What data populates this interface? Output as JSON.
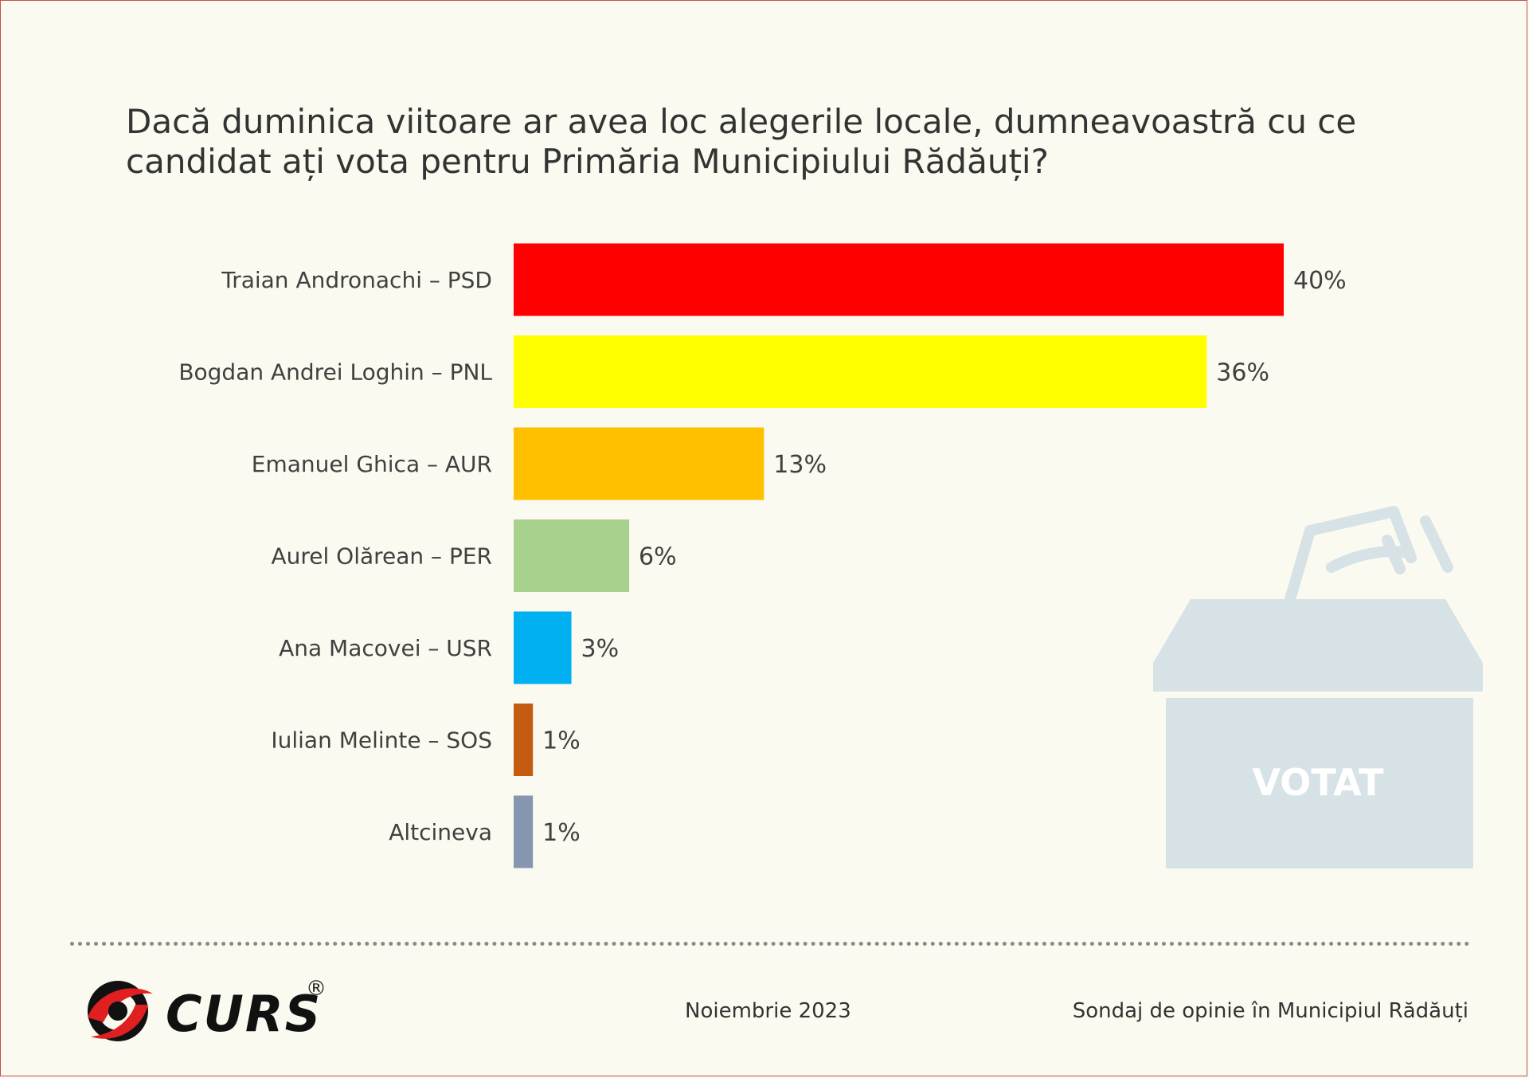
{
  "title": "Dacă duminica viitoare ar avea loc alegerile locale, dumneavoastră cu ce candidat ați vota pentru Primăria Municipiului Rădăuți?",
  "chart_data": {
    "type": "bar",
    "orientation": "horizontal",
    "title": "Dacă duminica viitoare ar avea loc alegerile locale, dumneavoastră cu ce candidat ați vota pentru Primăria Municipiului Rădăuți?",
    "categories": [
      "Traian Andronachi – PSD",
      "Bogdan Andrei Loghin – PNL",
      "Emanuel Ghica – AUR",
      "Aurel Olărean – PER",
      "Ana Macovei – USR",
      "Iulian Melinte – SOS",
      "Altcineva"
    ],
    "values": [
      40,
      36,
      13,
      6,
      3,
      1,
      1
    ],
    "value_labels": [
      "40%",
      "36%",
      "13%",
      "6%",
      "3%",
      "1%",
      "1%"
    ],
    "colors": [
      "#ff0000",
      "#ffff00",
      "#ffc000",
      "#a9d18e",
      "#00b0f0",
      "#c55a11",
      "#8496b0"
    ],
    "xlabel": "",
    "ylabel": "",
    "xlim": [
      0,
      40
    ],
    "grid": false,
    "legend": "none"
  },
  "ballot_box": {
    "icon": "ballot-box-icon",
    "label": "VOTAT",
    "color": "#d6e2e6"
  },
  "footer": {
    "brand": "CURS",
    "registered": "®",
    "date": "Noiembrie 2023",
    "source": "Sondaj de opinie în Municipiul Rădăuți"
  }
}
